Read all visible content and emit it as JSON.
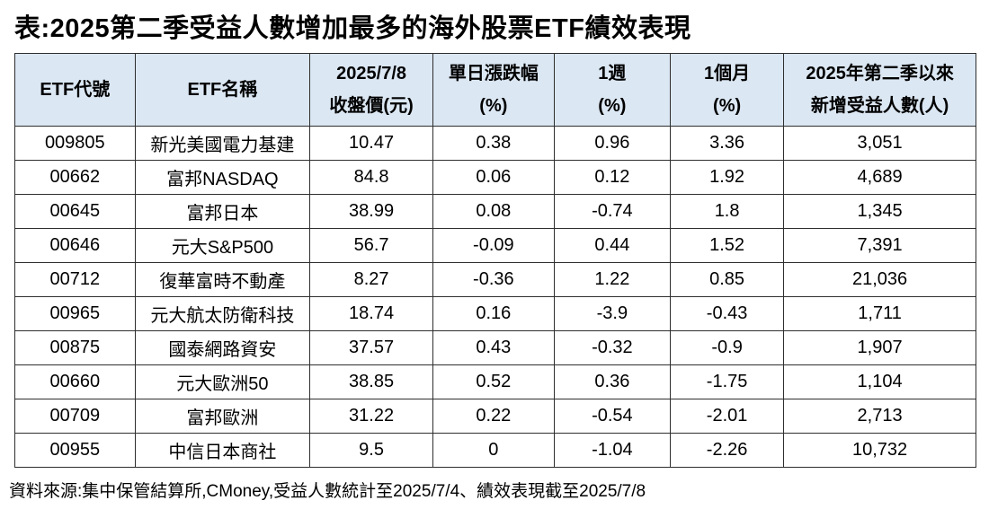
{
  "title": "表:2025第二季受益人數增加最多的海外股票ETF績效表現",
  "source_note": "資料來源:集中保管結算所,CMoney,受益人數統計至2025/7/4、績效表現截至2025/7/8",
  "colors": {
    "header_bg": "#dbe7f3",
    "border": "#2e2e2e",
    "text": "#000000",
    "page_bg": "#ffffff"
  },
  "table": {
    "headers": [
      "ETF代號",
      "ETF名稱",
      "2025/7/8\n收盤價(元)",
      "單日漲跌幅\n(%)",
      "1週\n(%)",
      "1個月\n(%)",
      "2025年第二季以來\n新增受益人數(人)"
    ],
    "rows": [
      [
        "009805",
        "新光美國電力基建",
        "10.47",
        "0.38",
        "0.96",
        "3.36",
        "3,051"
      ],
      [
        "00662",
        "富邦NASDAQ",
        "84.8",
        "0.06",
        "0.12",
        "1.92",
        "4,689"
      ],
      [
        "00645",
        "富邦日本",
        "38.99",
        "0.08",
        "-0.74",
        "1.8",
        "1,345"
      ],
      [
        "00646",
        "元大S&P500",
        "56.7",
        "-0.09",
        "0.44",
        "1.52",
        "7,391"
      ],
      [
        "00712",
        "復華富時不動產",
        "8.27",
        "-0.36",
        "1.22",
        "0.85",
        "21,036"
      ],
      [
        "00965",
        "元大航太防衛科技",
        "18.74",
        "0.16",
        "-3.9",
        "-0.43",
        "1,711"
      ],
      [
        "00875",
        "國泰網路資安",
        "37.57",
        "0.43",
        "-0.32",
        "-0.9",
        "1,907"
      ],
      [
        "00660",
        "元大歐洲50",
        "38.85",
        "0.52",
        "0.36",
        "-1.75",
        "1,104"
      ],
      [
        "00709",
        "富邦歐洲",
        "31.22",
        "0.22",
        "-0.54",
        "-2.01",
        "2,713"
      ],
      [
        "00955",
        "中信日本商社",
        "9.5",
        "0",
        "-1.04",
        "-2.26",
        "10,732"
      ]
    ]
  },
  "chart_data": {
    "type": "table",
    "title": "表:2025第二季受益人數增加最多的海外股票ETF績效表現",
    "columns": [
      "ETF代號",
      "ETF名稱",
      "2025/7/8 收盤價(元)",
      "單日漲跌幅(%)",
      "1週(%)",
      "1個月(%)",
      "2025年第二季以來新增受益人數(人)"
    ],
    "rows": [
      [
        "009805",
        "新光美國電力基建",
        10.47,
        0.38,
        0.96,
        3.36,
        3051
      ],
      [
        "00662",
        "富邦NASDAQ",
        84.8,
        0.06,
        0.12,
        1.92,
        4689
      ],
      [
        "00645",
        "富邦日本",
        38.99,
        0.08,
        -0.74,
        1.8,
        1345
      ],
      [
        "00646",
        "元大S&P500",
        56.7,
        -0.09,
        0.44,
        1.52,
        7391
      ],
      [
        "00712",
        "復華富時不動產",
        8.27,
        -0.36,
        1.22,
        0.85,
        21036
      ],
      [
        "00965",
        "元大航太防衛科技",
        18.74,
        0.16,
        -3.9,
        -0.43,
        1711
      ],
      [
        "00875",
        "國泰網路資安",
        37.57,
        0.43,
        -0.32,
        -0.9,
        1907
      ],
      [
        "00660",
        "元大歐洲50",
        38.85,
        0.52,
        0.36,
        -1.75,
        1104
      ],
      [
        "00709",
        "富邦歐洲",
        31.22,
        0.22,
        -0.54,
        -2.01,
        2713
      ],
      [
        "00955",
        "中信日本商社",
        9.5,
        0,
        -1.04,
        -2.26,
        10732
      ]
    ],
    "source": "資料來源:集中保管結算所,CMoney,受益人數統計至2025/7/4、績效表現截至2025/7/8"
  }
}
